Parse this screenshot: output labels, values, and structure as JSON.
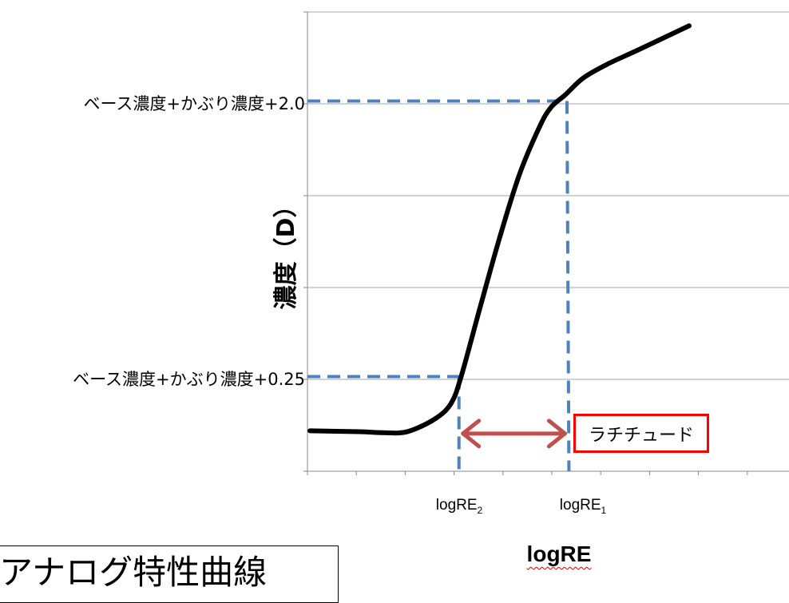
{
  "chart_data": {
    "type": "line",
    "title": "アナログ特性曲線",
    "xlabel": "logRE",
    "ylabel": "濃度（D）",
    "xlim": [
      0,
      10
    ],
    "ylim": [
      0,
      5
    ],
    "grid": "horizontal",
    "curve": {
      "x": [
        0.05,
        1.06,
        1.55,
        2.04,
        2.61,
        2.94,
        3.15,
        3.51,
        3.92,
        4.33,
        4.74,
        4.98,
        5.28,
        5.64,
        6.13,
        6.78,
        7.81
      ],
      "y": [
        0.44,
        0.43,
        0.42,
        0.43,
        0.57,
        0.74,
        1.04,
        1.74,
        2.52,
        3.22,
        3.74,
        3.96,
        4.1,
        4.28,
        4.43,
        4.59,
        4.85
      ]
    },
    "reference_levels": [
      {
        "label": "ベース濃度+かぶり濃度+2.0",
        "y": 4.03,
        "x": 5.31
      },
      {
        "label": "ベース濃度+かぶり濃度+0.25",
        "y": 1.03,
        "x": 3.1
      }
    ],
    "x_markers": [
      {
        "label": "logRE",
        "sub": "2",
        "x": 3.1
      },
      {
        "label": "logRE",
        "sub": "1",
        "x": 5.35
      }
    ],
    "annotation": {
      "label": "ラチチュード",
      "y": 0.41
    },
    "colors": {
      "curve": "#000000",
      "dashed": "#4f81bd",
      "arrow": "#c0504d",
      "box": "#ff0000",
      "grid": "#a6a6a6"
    }
  }
}
